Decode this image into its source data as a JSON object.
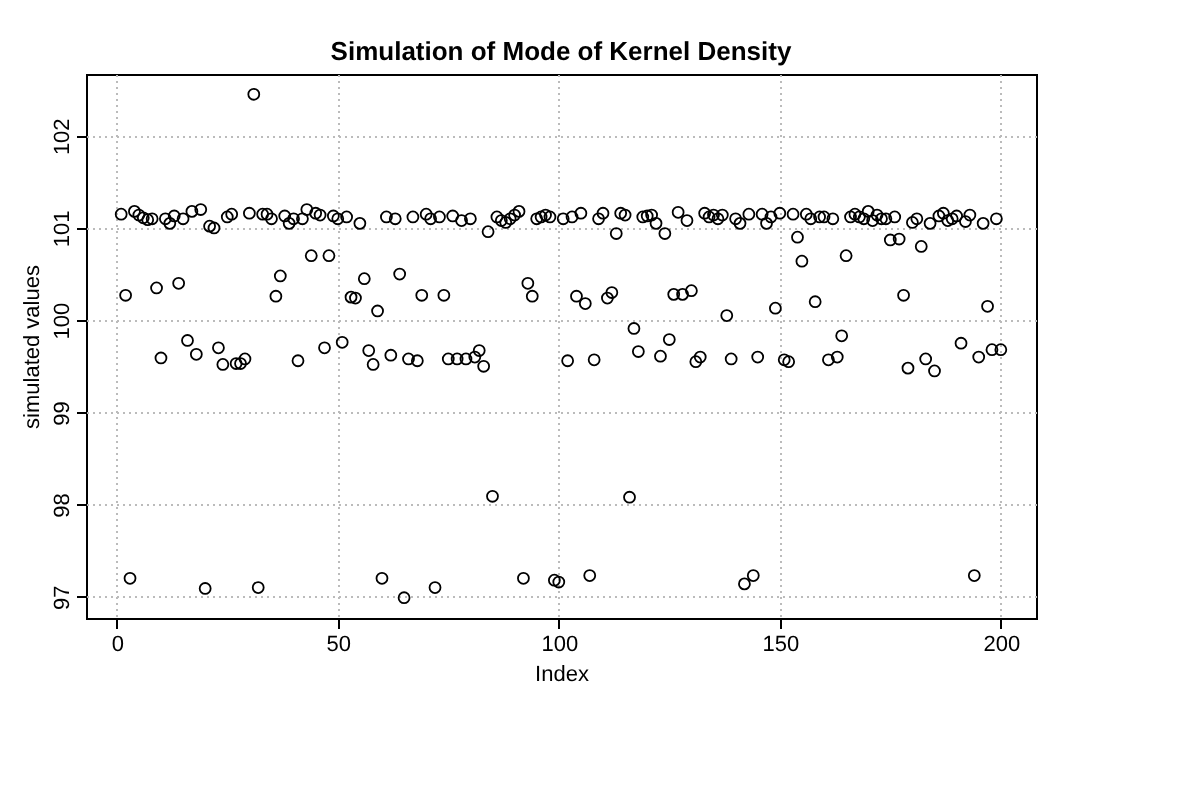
{
  "chart_data": {
    "type": "scatter",
    "title": "Simulation of Mode of Kernel Density",
    "xlabel": "Index",
    "ylabel": "simulated values",
    "x": [
      1,
      2,
      3,
      4,
      5,
      6,
      7,
      8,
      9,
      10,
      11,
      12,
      13,
      14,
      15,
      16,
      17,
      18,
      19,
      20,
      21,
      22,
      23,
      24,
      25,
      26,
      27,
      28,
      29,
      30,
      31,
      32,
      33,
      34,
      35,
      36,
      37,
      38,
      39,
      40,
      41,
      42,
      43,
      44,
      45,
      46,
      47,
      48,
      49,
      50,
      51,
      52,
      53,
      54,
      55,
      56,
      57,
      58,
      59,
      60,
      61,
      62,
      63,
      64,
      65,
      66,
      67,
      68,
      69,
      70,
      71,
      72,
      73,
      74,
      75,
      76,
      77,
      78,
      79,
      80,
      81,
      82,
      83,
      84,
      85,
      86,
      87,
      88,
      89,
      90,
      91,
      92,
      93,
      94,
      95,
      96,
      97,
      98,
      99,
      100,
      101,
      102,
      103,
      104,
      105,
      106,
      107,
      108,
      109,
      110,
      111,
      112,
      113,
      114,
      115,
      116,
      117,
      118,
      119,
      120,
      121,
      122,
      123,
      124,
      125,
      126,
      127,
      128,
      129,
      130,
      131,
      132,
      133,
      134,
      135,
      136,
      137,
      138,
      139,
      140,
      141,
      142,
      143,
      144,
      145,
      146,
      147,
      148,
      149,
      150,
      151,
      152,
      153,
      154,
      155,
      156,
      157,
      158,
      159,
      160,
      161,
      162,
      163,
      164,
      165,
      166,
      167,
      168,
      169,
      170,
      171,
      172,
      173,
      174,
      175,
      176,
      177,
      178,
      179,
      180,
      181,
      182,
      183,
      184,
      185,
      186,
      187,
      188,
      189,
      190,
      191,
      192,
      193,
      194,
      195,
      196,
      197,
      198,
      199,
      200
    ],
    "series": [
      {
        "color": "#000000",
        "values": [
          101.15,
          100.27,
          97.2,
          101.18,
          101.14,
          101.11,
          101.09,
          101.1,
          100.35,
          99.59,
          101.1,
          101.05,
          101.13,
          100.4,
          101.1,
          99.78,
          101.18,
          99.63,
          101.2,
          97.09,
          101.02,
          101.0,
          99.7,
          99.52,
          101.12,
          101.15,
          99.53,
          99.53,
          99.58,
          101.16,
          102.45,
          97.1,
          101.15,
          101.15,
          101.1,
          100.26,
          100.48,
          101.13,
          101.05,
          101.1,
          99.56,
          101.1,
          101.2,
          100.7,
          101.16,
          101.14,
          99.7,
          100.7,
          101.13,
          101.1,
          99.76,
          101.12,
          100.25,
          100.24,
          101.05,
          100.45,
          99.67,
          99.52,
          100.1,
          97.2,
          101.12,
          99.62,
          101.1,
          100.5,
          96.99,
          99.58,
          101.12,
          99.56,
          100.27,
          101.15,
          101.1,
          97.1,
          101.12,
          100.27,
          99.58,
          101.13,
          99.58,
          101.08,
          99.58,
          101.1,
          99.6,
          99.67,
          99.5,
          100.96,
          98.09,
          101.12,
          101.08,
          101.06,
          101.1,
          101.14,
          101.18,
          97.2,
          100.4,
          100.26,
          101.1,
          101.12,
          101.14,
          101.12,
          97.18,
          97.16,
          101.1,
          99.56,
          101.12,
          100.26,
          101.16,
          100.18,
          97.23,
          99.57,
          101.1,
          101.16,
          100.24,
          100.3,
          100.94,
          101.16,
          101.14,
          98.08,
          99.91,
          99.66,
          101.12,
          101.13,
          101.14,
          101.05,
          99.61,
          100.94,
          99.79,
          100.28,
          101.17,
          100.28,
          101.08,
          100.32,
          99.55,
          99.6,
          101.16,
          101.12,
          101.14,
          101.1,
          101.14,
          100.05,
          99.58,
          101.1,
          101.05,
          97.14,
          101.15,
          97.23,
          99.6,
          101.15,
          101.05,
          101.12,
          100.13,
          101.16,
          99.57,
          99.55,
          101.15,
          100.9,
          100.64,
          101.15,
          101.1,
          100.2,
          101.12,
          101.12,
          99.57,
          101.1,
          99.6,
          99.83,
          100.7,
          101.12,
          101.15,
          101.12,
          101.1,
          101.18,
          101.08,
          101.14,
          101.1,
          101.1,
          100.87,
          101.12,
          100.88,
          100.27,
          99.48,
          101.06,
          101.1,
          100.8,
          99.58,
          101.05,
          99.45,
          101.13,
          101.16,
          101.08,
          101.1,
          101.13,
          99.75,
          101.07,
          101.14,
          97.23,
          99.6,
          101.05,
          100.15,
          99.68,
          101.1,
          99.68
        ]
      }
    ],
    "xlim": [
      -6.96,
      207.96
    ],
    "ylim": [
      96.77,
      102.67
    ],
    "xticks": [
      0,
      50,
      100,
      150,
      200
    ],
    "yticks": [
      97,
      98,
      99,
      100,
      101,
      102
    ],
    "grid": true,
    "marker": "circle",
    "legend": false
  }
}
